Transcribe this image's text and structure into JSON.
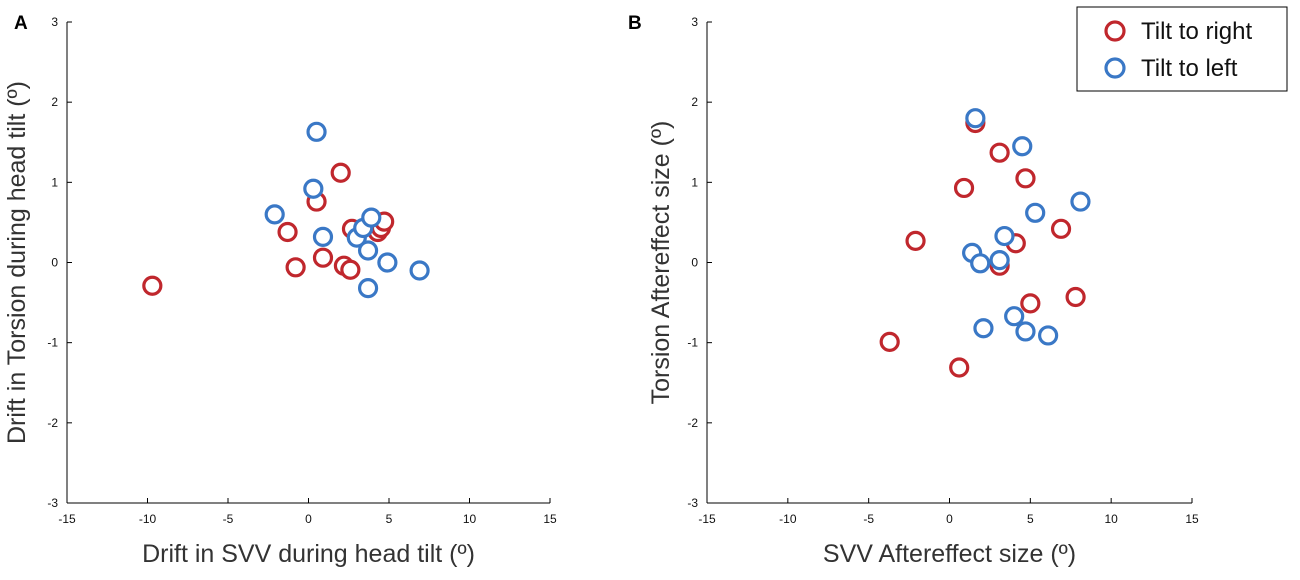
{
  "colors": {
    "right": "#c0272d",
    "left": "#3a78c6",
    "axis": "#000000"
  },
  "legend": {
    "entries": [
      {
        "label": "Tilt to right",
        "series": "right"
      },
      {
        "label": "Tilt to left",
        "series": "left"
      }
    ]
  },
  "chart_data": [
    {
      "type": "scatter",
      "panel": "A",
      "title": "",
      "xlabel": "Drift in SVV during head tilt (º)",
      "ylabel": "Drift in Torsion during head tilt (º)",
      "xlim": [
        -15,
        15
      ],
      "ylim": [
        -3,
        3
      ],
      "xticks": [
        -15,
        -10,
        -5,
        0,
        5,
        10,
        15
      ],
      "yticks": [
        -3,
        -2,
        -1,
        0,
        1,
        2,
        3
      ],
      "series": [
        {
          "name": "Tilt to right",
          "key": "right",
          "points": [
            [
              -9.7,
              -0.29
            ],
            [
              -1.3,
              0.38
            ],
            [
              -0.8,
              -0.06
            ],
            [
              0.5,
              0.76
            ],
            [
              0.9,
              0.06
            ],
            [
              2.0,
              1.12
            ],
            [
              2.2,
              -0.04
            ],
            [
              2.6,
              -0.09
            ],
            [
              2.7,
              0.42
            ],
            [
              4.3,
              0.38
            ],
            [
              4.5,
              0.43
            ],
            [
              4.7,
              0.51
            ]
          ]
        },
        {
          "name": "Tilt to left",
          "key": "left",
          "points": [
            [
              -2.1,
              0.6
            ],
            [
              0.3,
              0.92
            ],
            [
              0.5,
              1.63
            ],
            [
              0.9,
              0.32
            ],
            [
              3.0,
              0.31
            ],
            [
              3.4,
              0.43
            ],
            [
              3.7,
              0.15
            ],
            [
              3.9,
              0.56
            ],
            [
              3.7,
              -0.32
            ],
            [
              4.9,
              0.0
            ],
            [
              6.9,
              -0.1
            ]
          ]
        }
      ]
    },
    {
      "type": "scatter",
      "panel": "B",
      "title": "",
      "xlabel": "SVV Aftereffect size (º)",
      "ylabel": "Torsion Aftereffect size (º)",
      "xlim": [
        -15,
        15
      ],
      "ylim": [
        -3,
        3
      ],
      "xticks": [
        -15,
        -10,
        -5,
        0,
        5,
        10,
        15
      ],
      "yticks": [
        -3,
        -2,
        -1,
        0,
        1,
        2,
        3
      ],
      "series": [
        {
          "name": "Tilt to right",
          "key": "right",
          "points": [
            [
              1.6,
              1.74
            ],
            [
              3.1,
              1.37
            ],
            [
              0.9,
              0.93
            ],
            [
              4.7,
              1.05
            ],
            [
              6.9,
              0.42
            ],
            [
              -2.1,
              0.27
            ],
            [
              4.1,
              0.24
            ],
            [
              3.1,
              -0.04
            ],
            [
              5.0,
              -0.51
            ],
            [
              7.8,
              -0.43
            ],
            [
              -3.7,
              -0.99
            ],
            [
              0.6,
              -1.31
            ]
          ]
        },
        {
          "name": "Tilt to left",
          "key": "left",
          "points": [
            [
              1.6,
              1.8
            ],
            [
              4.5,
              1.45
            ],
            [
              8.1,
              0.76
            ],
            [
              5.3,
              0.62
            ],
            [
              3.4,
              0.33
            ],
            [
              1.4,
              0.12
            ],
            [
              1.9,
              -0.01
            ],
            [
              3.1,
              0.03
            ],
            [
              4.0,
              -0.67
            ],
            [
              2.1,
              -0.82
            ],
            [
              4.7,
              -0.86
            ],
            [
              6.1,
              -0.91
            ]
          ]
        }
      ]
    }
  ]
}
